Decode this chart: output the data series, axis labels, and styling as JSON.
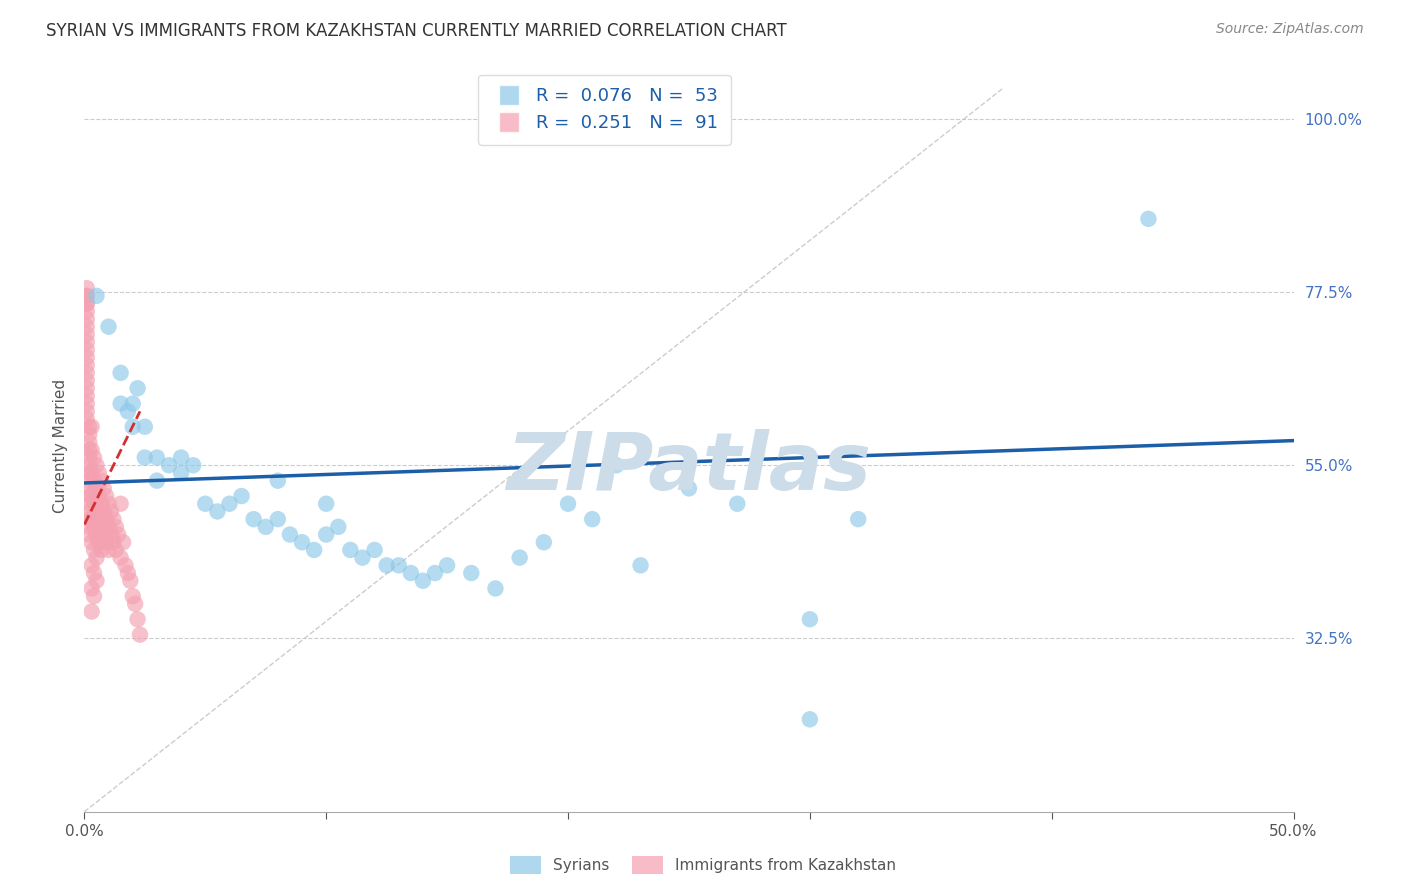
{
  "title": "SYRIAN VS IMMIGRANTS FROM KAZAKHSTAN CURRENTLY MARRIED CORRELATION CHART",
  "source": "Source: ZipAtlas.com",
  "ylabel": "Currently Married",
  "x_tick_labels": [
    "0.0%",
    "",
    "",
    "",
    "",
    "50.0%"
  ],
  "x_tick_values": [
    0.0,
    0.1,
    0.2,
    0.3,
    0.4,
    0.5
  ],
  "y_tick_labels_right": [
    "100.0%",
    "77.5%",
    "55.0%",
    "32.5%"
  ],
  "y_tick_values": [
    1.0,
    0.775,
    0.55,
    0.325
  ],
  "xlim": [
    0.0,
    0.5
  ],
  "ylim": [
    0.1,
    1.05
  ],
  "legend_label_1": "Syrians",
  "legend_label_2": "Immigrants from Kazakhstan",
  "color_blue": "#8ec8e8",
  "color_pink": "#f4a0b0",
  "color_blue_line": "#1c5ea8",
  "color_pink_line": "#d03030",
  "color_diagonal": "#c0c0c0",
  "watermark": "ZIPatlas",
  "watermark_color": "#ccdce8",
  "syrians_x": [
    0.005,
    0.01,
    0.015,
    0.015,
    0.018,
    0.02,
    0.02,
    0.022,
    0.025,
    0.025,
    0.03,
    0.03,
    0.035,
    0.04,
    0.04,
    0.045,
    0.05,
    0.055,
    0.06,
    0.065,
    0.07,
    0.075,
    0.08,
    0.08,
    0.085,
    0.09,
    0.095,
    0.1,
    0.1,
    0.105,
    0.11,
    0.115,
    0.12,
    0.125,
    0.13,
    0.135,
    0.14,
    0.145,
    0.15,
    0.16,
    0.17,
    0.18,
    0.19,
    0.2,
    0.21,
    0.22,
    0.23,
    0.25,
    0.27,
    0.3,
    0.32,
    0.44,
    0.3
  ],
  "syrians_y": [
    0.77,
    0.73,
    0.67,
    0.63,
    0.62,
    0.6,
    0.63,
    0.65,
    0.56,
    0.6,
    0.56,
    0.53,
    0.55,
    0.56,
    0.54,
    0.55,
    0.5,
    0.49,
    0.5,
    0.51,
    0.48,
    0.47,
    0.48,
    0.53,
    0.46,
    0.45,
    0.44,
    0.46,
    0.5,
    0.47,
    0.44,
    0.43,
    0.44,
    0.42,
    0.42,
    0.41,
    0.4,
    0.41,
    0.42,
    0.41,
    0.39,
    0.43,
    0.45,
    0.5,
    0.48,
    0.55,
    0.42,
    0.52,
    0.5,
    0.35,
    0.48,
    0.87,
    0.22
  ],
  "kazakhstan_x": [
    0.001,
    0.001,
    0.001,
    0.001,
    0.001,
    0.001,
    0.001,
    0.001,
    0.001,
    0.001,
    0.001,
    0.001,
    0.001,
    0.001,
    0.001,
    0.001,
    0.001,
    0.001,
    0.001,
    0.001,
    0.002,
    0.002,
    0.002,
    0.002,
    0.002,
    0.002,
    0.002,
    0.002,
    0.002,
    0.002,
    0.002,
    0.002,
    0.002,
    0.002,
    0.002,
    0.003,
    0.003,
    0.003,
    0.003,
    0.003,
    0.003,
    0.003,
    0.003,
    0.003,
    0.004,
    0.004,
    0.004,
    0.004,
    0.004,
    0.004,
    0.004,
    0.005,
    0.005,
    0.005,
    0.005,
    0.005,
    0.005,
    0.006,
    0.006,
    0.006,
    0.006,
    0.007,
    0.007,
    0.007,
    0.007,
    0.008,
    0.008,
    0.008,
    0.009,
    0.009,
    0.009,
    0.01,
    0.01,
    0.01,
    0.011,
    0.011,
    0.012,
    0.012,
    0.013,
    0.013,
    0.014,
    0.015,
    0.015,
    0.016,
    0.017,
    0.018,
    0.019,
    0.02,
    0.021,
    0.022,
    0.023
  ],
  "kazakhstan_y": [
    0.78,
    0.77,
    0.77,
    0.76,
    0.76,
    0.75,
    0.74,
    0.73,
    0.72,
    0.71,
    0.7,
    0.69,
    0.68,
    0.67,
    0.66,
    0.65,
    0.64,
    0.63,
    0.62,
    0.61,
    0.6,
    0.59,
    0.58,
    0.57,
    0.56,
    0.55,
    0.54,
    0.53,
    0.52,
    0.51,
    0.5,
    0.49,
    0.48,
    0.47,
    0.46,
    0.6,
    0.57,
    0.54,
    0.51,
    0.48,
    0.45,
    0.42,
    0.39,
    0.36,
    0.56,
    0.53,
    0.5,
    0.47,
    0.44,
    0.41,
    0.38,
    0.55,
    0.52,
    0.49,
    0.46,
    0.43,
    0.4,
    0.54,
    0.51,
    0.48,
    0.45,
    0.53,
    0.5,
    0.47,
    0.44,
    0.52,
    0.49,
    0.46,
    0.51,
    0.48,
    0.45,
    0.5,
    0.47,
    0.44,
    0.49,
    0.46,
    0.48,
    0.45,
    0.47,
    0.44,
    0.46,
    0.5,
    0.43,
    0.45,
    0.42,
    0.41,
    0.4,
    0.38,
    0.37,
    0.35,
    0.33
  ],
  "blue_line_x": [
    0.0,
    0.5
  ],
  "blue_line_y": [
    0.527,
    0.582
  ],
  "pink_line_x": [
    0.0,
    0.023
  ],
  "pink_line_y": [
    0.473,
    0.62
  ],
  "diag_line_x": [
    0.0,
    0.38
  ],
  "diag_line_y": [
    0.1,
    1.04
  ]
}
